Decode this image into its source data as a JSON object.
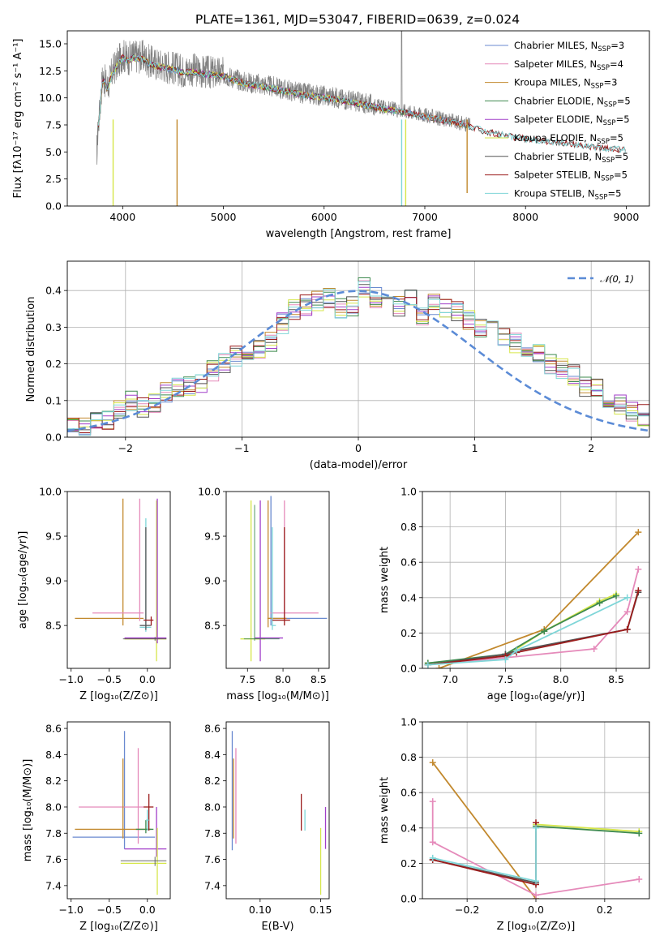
{
  "figure": {
    "title": "PLATE=1361, MJD=53047, FIBERID=0639, z=0.024"
  },
  "series_colors": {
    "Chabrier MILES": "#6a8ad0",
    "Salpeter MILES": "#e58aba",
    "Kroupa MILES": "#c2892e",
    "Chabrier ELODIE": "#3e8a4e",
    "Salpeter ELODIE": "#a13ec9",
    "Kroupa ELODIE": "#d6e64a",
    "Chabrier STELIB": "#555555",
    "Salpeter STELIB": "#9b1c1c",
    "Kroupa STELIB": "#7fd6d8",
    "data": "#808080",
    "normal": "#5b8bd6"
  },
  "chart_data": [
    {
      "id": "spectrum",
      "type": "line",
      "xlabel": "wavelength [Angstrom, rest frame]",
      "ylabel": "Flux [fλ10⁻¹⁷ erg cm⁻² s⁻¹ A⁻¹]",
      "xlim": [
        3450,
        9230
      ],
      "ylim": [
        0,
        16.2
      ],
      "xticks": [
        "4000",
        "5000",
        "6000",
        "7000",
        "8000",
        "9000"
      ],
      "yticks": [
        "0.0",
        "2.5",
        "5.0",
        "7.5",
        "10.0",
        "12.5",
        "15.0"
      ],
      "legend_position": "top-right",
      "legend": [
        {
          "name": "Chabrier MILES",
          "nssp": "3"
        },
        {
          "name": "Salpeter MILES",
          "nssp": "4"
        },
        {
          "name": "Kroupa MILES",
          "nssp": "3"
        },
        {
          "name": "Chabrier ELODIE",
          "nssp": "5"
        },
        {
          "name": "Salpeter ELODIE",
          "nssp": "5"
        },
        {
          "name": "Kroupa ELODIE",
          "nssp": "5"
        },
        {
          "name": "Chabrier STELIB",
          "nssp": "5"
        },
        {
          "name": "Salpeter STELIB",
          "nssp": "5"
        },
        {
          "name": "Kroupa STELIB",
          "nssp": "5"
        }
      ],
      "continuum": {
        "x": [
          3750,
          3800,
          3850,
          3900,
          3950,
          4000,
          4050,
          4100,
          4200,
          4300,
          4400,
          4500,
          4600,
          4700,
          4800,
          4900,
          5000,
          5200,
          5400,
          5600,
          5800,
          6000,
          6200,
          6400,
          6600,
          6800,
          7000,
          7200,
          7400,
          7600,
          7800,
          8000,
          8200,
          8400,
          8600,
          8800,
          9000,
          9100
        ],
        "y": [
          6.5,
          12.0,
          11.0,
          12.5,
          13.2,
          14.0,
          13.6,
          13.9,
          13.8,
          13.2,
          13.0,
          12.8,
          12.5,
          12.6,
          12.4,
          12.3,
          12.2,
          11.5,
          11.2,
          10.8,
          10.4,
          10.2,
          9.9,
          9.5,
          9.1,
          8.8,
          8.4,
          8.0,
          7.6,
          7.0,
          6.6,
          6.3,
          6.1,
          5.9,
          5.6,
          5.4,
          5.3,
          5.2
        ]
      }
    },
    {
      "id": "residuals",
      "type": "bar",
      "xlabel": "(data-model)/error",
      "ylabel": "Normed distribution",
      "xlim": [
        -2.5,
        2.5
      ],
      "ylim": [
        0,
        0.48
      ],
      "xticks": [
        "−2",
        "−1",
        "0",
        "1",
        "2"
      ],
      "yticks": [
        "0.0",
        "0.1",
        "0.2",
        "0.3",
        "0.4"
      ],
      "legend_position": "top-right",
      "legend": [
        {
          "name": "𝒩(0, 1)"
        }
      ],
      "bin_edges_start": -2.5,
      "bin_width": 0.1,
      "histogram": [
        0.03,
        0.03,
        0.04,
        0.05,
        0.07,
        0.1,
        0.08,
        0.09,
        0.12,
        0.14,
        0.14,
        0.15,
        0.18,
        0.2,
        0.22,
        0.21,
        0.24,
        0.26,
        0.31,
        0.35,
        0.36,
        0.37,
        0.38,
        0.35,
        0.36,
        0.41,
        0.38,
        0.4,
        0.36,
        0.38,
        0.33,
        0.36,
        0.35,
        0.34,
        0.32,
        0.3,
        0.31,
        0.28,
        0.26,
        0.22,
        0.23,
        0.2,
        0.19,
        0.17,
        0.14,
        0.13,
        0.1,
        0.09,
        0.07,
        0.06
      ]
    },
    {
      "id": "age_vs_Z",
      "type": "scatter",
      "xlabel": "Z [log₁₀(Z/Z⊙)]",
      "ylabel": "age  [log₁₀(age/yr)]",
      "xlim": [
        -1.05,
        0.3
      ],
      "ylim": [
        8.02,
        10.0
      ],
      "xticks": [
        "−1.0",
        "−0.5",
        "0.0"
      ],
      "yticks": [
        "8.5",
        "9.0",
        "9.5",
        "10.0"
      ]
    },
    {
      "id": "age_vs_mass",
      "type": "scatter",
      "xlabel": "mass [log₁₀(M/M⊙)]",
      "xlim": [
        7.2,
        8.65
      ],
      "ylim": [
        8.02,
        10.0
      ],
      "xticks": [
        "7.5",
        "8.0",
        "8.5"
      ],
      "yticks": [
        "8.5",
        "9.0",
        "9.5",
        "10.0"
      ]
    },
    {
      "id": "mass_weight_vs_age",
      "type": "line",
      "xlabel": "age  [log₁₀(age/yr)]",
      "ylabel": "mass weight",
      "xlim": [
        6.75,
        8.8
      ],
      "ylim": [
        0,
        1
      ],
      "xticks": [
        "7.0",
        "7.5",
        "8.0",
        "8.5"
      ],
      "yticks": [
        "0.0",
        "0.2",
        "0.4",
        "0.6",
        "0.8",
        "1.0"
      ],
      "series": [
        {
          "name": "Kroupa MILES",
          "x": [
            6.9,
            7.85,
            8.7
          ],
          "y": [
            0.0,
            0.22,
            0.77
          ]
        },
        {
          "name": "Salpeter MILES",
          "x": [
            6.8,
            7.5,
            8.3,
            8.6,
            8.7
          ],
          "y": [
            0.02,
            0.06,
            0.11,
            0.32,
            0.56
          ]
        },
        {
          "name": "Kroupa ELODIE",
          "x": [
            6.8,
            7.5,
            7.85,
            8.35,
            8.5
          ],
          "y": [
            0.03,
            0.07,
            0.21,
            0.38,
            0.42
          ]
        },
        {
          "name": "Chabrier ELODIE",
          "x": [
            6.8,
            7.5,
            7.85,
            8.35,
            8.5
          ],
          "y": [
            0.03,
            0.08,
            0.21,
            0.37,
            0.41
          ]
        },
        {
          "name": "Chabrier STELIB",
          "x": [
            6.8,
            7.5,
            7.6,
            8.6,
            8.7
          ],
          "y": [
            0.02,
            0.08,
            0.1,
            0.22,
            0.43
          ]
        },
        {
          "name": "Salpeter STELIB",
          "x": [
            6.8,
            7.5,
            7.6,
            8.6,
            8.7
          ],
          "y": [
            0.02,
            0.07,
            0.09,
            0.22,
            0.44
          ]
        },
        {
          "name": "Kroupa STELIB",
          "x": [
            6.8,
            7.5,
            7.6,
            8.6
          ],
          "y": [
            0.02,
            0.05,
            0.1,
            0.4
          ]
        }
      ]
    },
    {
      "id": "mass_vs_Z",
      "type": "scatter",
      "xlabel": "Z [log₁₀(Z/Z⊙)]",
      "ylabel": "mass [log₁₀(M/M⊙)]",
      "xlim": [
        -1.05,
        0.3
      ],
      "ylim": [
        7.3,
        8.65
      ],
      "xticks": [
        "−1.0",
        "−0.5",
        "0.0"
      ],
      "yticks": [
        "7.4",
        "7.6",
        "7.8",
        "8.0",
        "8.2",
        "8.4",
        "8.6"
      ]
    },
    {
      "id": "mass_vs_EBV",
      "type": "scatter",
      "xlabel": "E(B-V)",
      "xlim": [
        0.072,
        0.157
      ],
      "ylim": [
        7.3,
        8.65
      ],
      "xticks": [
        "0.10",
        "0.15"
      ],
      "yticks": [
        "7.4",
        "7.6",
        "7.8",
        "8.0",
        "8.2",
        "8.4",
        "8.6"
      ],
      "points": [
        {
          "x": 0.077,
          "y": 8.1,
          "ylo": 7.67,
          "yhi": 8.58,
          "series": "Chabrier MILES"
        },
        {
          "x": 0.08,
          "y": 8.1,
          "ylo": 7.72,
          "yhi": 8.45,
          "series": "Salpeter MILES"
        },
        {
          "x": 0.078,
          "y": 8.0,
          "ylo": 7.76,
          "yhi": 8.37,
          "series": "Kroupa MILES"
        },
        {
          "x": 0.134,
          "y": 7.96,
          "ylo": 7.82,
          "yhi": 8.1,
          "series": "Salpeter STELIB"
        },
        {
          "x": 0.137,
          "y": 7.9,
          "ylo": 7.82,
          "yhi": 7.98,
          "series": "Kroupa STELIB"
        },
        {
          "x": 0.15,
          "y": 7.55,
          "ylo": 7.33,
          "yhi": 7.84,
          "series": "Kroupa ELODIE"
        },
        {
          "x": 0.154,
          "y": 7.85,
          "ylo": 7.68,
          "yhi": 8.0,
          "series": "Salpeter ELODIE"
        }
      ]
    },
    {
      "id": "mass_weight_vs_Z",
      "type": "line",
      "xlabel": "Z [log₁₀(Z/Z⊙)]",
      "ylabel": "mass weight",
      "xlim": [
        -0.33,
        0.33
      ],
      "ylim": [
        0,
        1
      ],
      "xticks": [
        "−0.2",
        "0.0",
        "0.2"
      ],
      "yticks": [
        "0.0",
        "0.2",
        "0.4",
        "0.6",
        "0.8",
        "1.0"
      ],
      "series": [
        {
          "name": "Kroupa MILES",
          "x": [
            -0.3,
            0.0
          ],
          "y": [
            0.77,
            0.0
          ]
        },
        {
          "name": "Salpeter MILES",
          "x": [
            -0.3,
            -0.3,
            0.0,
            0.3
          ],
          "y": [
            0.55,
            0.32,
            0.02,
            0.11
          ]
        },
        {
          "name": "Kroupa ELODIE",
          "x": [
            0.0,
            0.3
          ],
          "y": [
            0.42,
            0.38
          ]
        },
        {
          "name": "Chabrier ELODIE",
          "x": [
            0.0,
            0.3
          ],
          "y": [
            0.41,
            0.37
          ]
        },
        {
          "name": "Chabrier STELIB",
          "x": [
            -0.3,
            0.0
          ],
          "y": [
            0.22,
            0.09
          ]
        },
        {
          "name": "Salpeter STELIB",
          "x": [
            -0.3,
            0.0,
            0.0
          ],
          "y": [
            0.22,
            0.08,
            0.43
          ]
        },
        {
          "name": "Kroupa STELIB",
          "x": [
            -0.3,
            0.0,
            0.0
          ],
          "y": [
            0.23,
            0.1,
            0.4
          ]
        }
      ]
    }
  ]
}
